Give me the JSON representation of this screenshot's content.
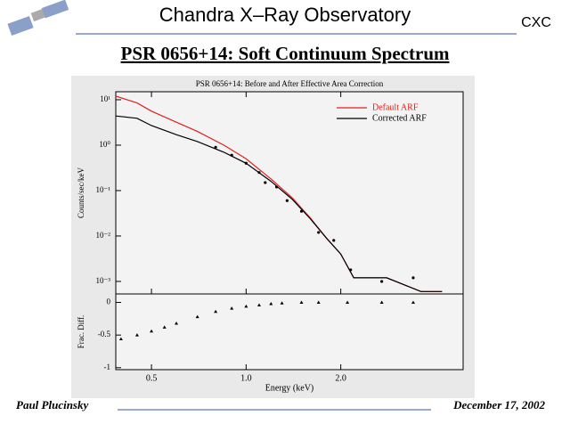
{
  "header": {
    "observatory": "Chandra X–Ray Observatory",
    "org": "CXC",
    "title": "PSR 0656+14: Soft Continuum Spectrum"
  },
  "footer": {
    "author": "Paul Plucinsky",
    "date": "December 17, 2002"
  },
  "chart_data": [
    {
      "type": "line",
      "title": "PSR 0656+14: Before and After Effective Area Correction",
      "y_label": "Counts/sec/keV",
      "log_x": true,
      "log_y": true,
      "legend": "upper right",
      "xlim": [
        0.385,
        4.9
      ],
      "ylim": [
        0.00053,
        15
      ],
      "yticks": [
        {
          "value": 10,
          "label": "10¹"
        },
        {
          "value": 1,
          "label": "10⁰"
        },
        {
          "value": 0.1,
          "label": "10⁻¹"
        },
        {
          "value": 0.01,
          "label": "10⁻²"
        },
        {
          "value": 0.001,
          "label": "10⁻³"
        }
      ],
      "x": [
        0.385,
        0.45,
        0.5,
        0.6,
        0.7,
        0.85,
        1.0,
        1.2,
        1.4,
        1.6,
        1.8,
        2.0,
        2.2,
        2.8,
        3.6,
        4.2
      ],
      "series": [
        {
          "name": "Default ARF",
          "color": "#e0201c",
          "values": [
            12,
            8.5,
            5.6,
            3.2,
            2.0,
            1.0,
            0.5,
            0.18,
            0.07,
            0.025,
            0.009,
            0.004,
            0.0012,
            0.0012,
            0.0006,
            0.0006
          ]
        },
        {
          "name": "Corrected ARF",
          "color": "#000000",
          "values": [
            4.4,
            3.9,
            2.7,
            1.7,
            1.2,
            0.7,
            0.4,
            0.16,
            0.065,
            0.024,
            0.009,
            0.004,
            0.0012,
            0.0012,
            0.0006,
            0.0006
          ]
        }
      ],
      "points": {
        "color": "#000000",
        "x": [
          0.8,
          0.9,
          1.0,
          1.1,
          1.15,
          1.25,
          1.35,
          1.5,
          1.7,
          1.9,
          2.15,
          2.7,
          3.4
        ],
        "values": [
          0.9,
          0.6,
          0.4,
          0.25,
          0.15,
          0.12,
          0.06,
          0.035,
          0.012,
          0.008,
          0.0018,
          0.001,
          0.0012
        ]
      }
    },
    {
      "type": "scatter",
      "x_label": "Energy (keV)",
      "y_label": "Frac. Diff.",
      "log_x": true,
      "log_y": false,
      "xlim": [
        0.385,
        4.9
      ],
      "ylim": [
        -1.03,
        0.13
      ],
      "xticks": [
        0.5,
        {
          "value": 1,
          "label": "1.0"
        },
        {
          "value": 2,
          "label": "2.0"
        }
      ],
      "yticks": [
        0,
        -0.5,
        -1
      ],
      "color": "#000000",
      "x": [
        0.4,
        0.45,
        0.5,
        0.55,
        0.6,
        0.7,
        0.8,
        0.9,
        1.0,
        1.1,
        1.2,
        1.3,
        1.5,
        1.7,
        2.1,
        2.7,
        3.4
      ],
      "values": [
        -0.56,
        -0.5,
        -0.44,
        -0.38,
        -0.32,
        -0.22,
        -0.14,
        -0.09,
        -0.06,
        -0.04,
        -0.02,
        -0.01,
        0,
        0,
        0,
        0,
        0
      ]
    }
  ]
}
